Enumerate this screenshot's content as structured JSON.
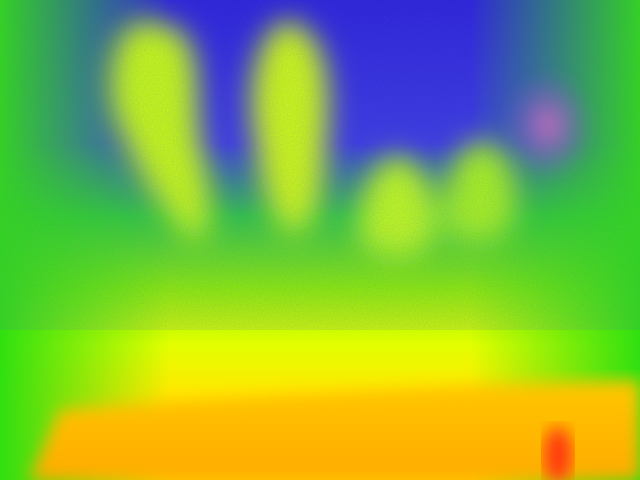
{
  "image": {
    "kind": "thermal-false-color-photo",
    "description_colors": {
      "cold": "#2a20d8",
      "cool": "#22e000",
      "mid": "#c8ff00",
      "warm": "#ffee00",
      "hot": "#ffb000",
      "hottest": "#ff3a00",
      "magenta_patch": "#c040ff"
    },
    "blobs": [
      {
        "name": "finger-blob-1",
        "intensity": 0.78
      },
      {
        "name": "finger-blob-2",
        "intensity": 0.8
      },
      {
        "name": "finger-blob-3",
        "intensity": 0.7
      },
      {
        "name": "finger-blob-4",
        "intensity": 0.66
      }
    ]
  }
}
